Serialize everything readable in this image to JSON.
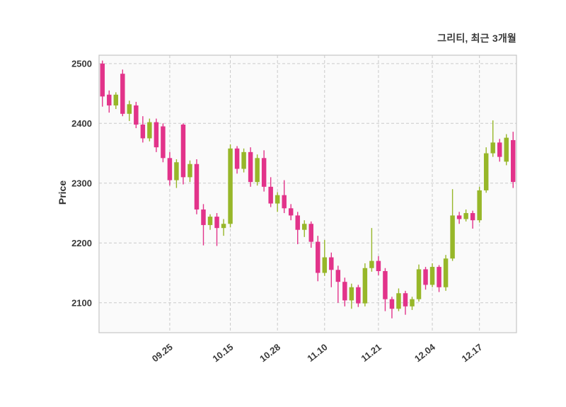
{
  "header": {
    "title": "그리티, 최근 3개월"
  },
  "chart_data": {
    "type": "candlestick",
    "title": "그리티, 최근 3개월",
    "xlabel": "",
    "ylabel": "Price",
    "y_ticks": [
      2100,
      2200,
      2300,
      2400,
      2500
    ],
    "ylim": [
      2050,
      2514
    ],
    "x_tick_labels": [
      "09.25",
      "10.15",
      "10.28",
      "11.10",
      "11.21",
      "12.04",
      "12.17"
    ],
    "x_tick_indices": [
      10,
      19,
      26,
      33,
      41,
      49,
      56
    ],
    "grid": "dashed",
    "legend": "none",
    "colors": {
      "up": "#97b729",
      "down": "#e2338a",
      "grid": "#c9c9c9",
      "border": "#c6c6c6",
      "text": "#3a3a3a",
      "plot_bg": "#fafafa",
      "figure_bg": "#ffffff"
    },
    "ohlc_order": "open,high,low,close",
    "candles": [
      [
        2500,
        2505,
        2428,
        2445
      ],
      [
        2448,
        2455,
        2418,
        2430
      ],
      [
        2430,
        2452,
        2424,
        2448
      ],
      [
        2483,
        2490,
        2412,
        2416
      ],
      [
        2416,
        2438,
        2404,
        2432
      ],
      [
        2430,
        2436,
        2392,
        2398
      ],
      [
        2398,
        2412,
        2368,
        2375
      ],
      [
        2375,
        2408,
        2370,
        2402
      ],
      [
        2402,
        2408,
        2352,
        2360
      ],
      [
        2395,
        2400,
        2335,
        2342
      ],
      [
        2342,
        2352,
        2296,
        2305
      ],
      [
        2305,
        2340,
        2292,
        2335
      ],
      [
        2398,
        2400,
        2298,
        2310
      ],
      [
        2310,
        2338,
        2302,
        2332
      ],
      [
        2332,
        2340,
        2248,
        2256
      ],
      [
        2256,
        2265,
        2196,
        2230
      ],
      [
        2230,
        2248,
        2222,
        2244
      ],
      [
        2244,
        2250,
        2195,
        2225
      ],
      [
        2225,
        2240,
        2212,
        2232
      ],
      [
        2232,
        2365,
        2226,
        2358
      ],
      [
        2358,
        2362,
        2316,
        2324
      ],
      [
        2324,
        2358,
        2318,
        2352
      ],
      [
        2352,
        2360,
        2294,
        2302
      ],
      [
        2302,
        2348,
        2296,
        2342
      ],
      [
        2342,
        2355,
        2286,
        2294
      ],
      [
        2294,
        2310,
        2260,
        2266
      ],
      [
        2266,
        2285,
        2252,
        2280
      ],
      [
        2280,
        2305,
        2250,
        2258
      ],
      [
        2258,
        2265,
        2238,
        2246
      ],
      [
        2246,
        2252,
        2198,
        2222
      ],
      [
        2222,
        2238,
        2210,
        2232
      ],
      [
        2232,
        2236,
        2192,
        2202
      ],
      [
        2202,
        2212,
        2136,
        2150
      ],
      [
        2150,
        2205,
        2145,
        2176
      ],
      [
        2176,
        2184,
        2126,
        2155
      ],
      [
        2155,
        2162,
        2100,
        2135
      ],
      [
        2135,
        2142,
        2094,
        2104
      ],
      [
        2104,
        2132,
        2090,
        2126
      ],
      [
        2126,
        2130,
        2093,
        2099
      ],
      [
        2099,
        2166,
        2094,
        2158
      ],
      [
        2158,
        2225,
        2152,
        2170
      ],
      [
        2170,
        2178,
        2146,
        2153
      ],
      [
        2153,
        2158,
        2086,
        2106
      ],
      [
        2106,
        2110,
        2074,
        2090
      ],
      [
        2090,
        2124,
        2086,
        2116
      ],
      [
        2116,
        2120,
        2080,
        2094
      ],
      [
        2094,
        2110,
        2088,
        2106
      ],
      [
        2106,
        2164,
        2102,
        2156
      ],
      [
        2156,
        2160,
        2122,
        2130
      ],
      [
        2130,
        2166,
        2126,
        2160
      ],
      [
        2160,
        2163,
        2118,
        2126
      ],
      [
        2126,
        2180,
        2120,
        2174
      ],
      [
        2174,
        2290,
        2170,
        2246
      ],
      [
        2246,
        2252,
        2232,
        2240
      ],
      [
        2240,
        2256,
        2236,
        2250
      ],
      [
        2250,
        2254,
        2224,
        2238
      ],
      [
        2238,
        2294,
        2234,
        2288
      ],
      [
        2288,
        2360,
        2284,
        2350
      ],
      [
        2350,
        2405,
        2344,
        2368
      ],
      [
        2368,
        2374,
        2336,
        2344
      ],
      [
        2336,
        2382,
        2330,
        2376
      ],
      [
        2372,
        2386,
        2292,
        2302
      ]
    ]
  }
}
